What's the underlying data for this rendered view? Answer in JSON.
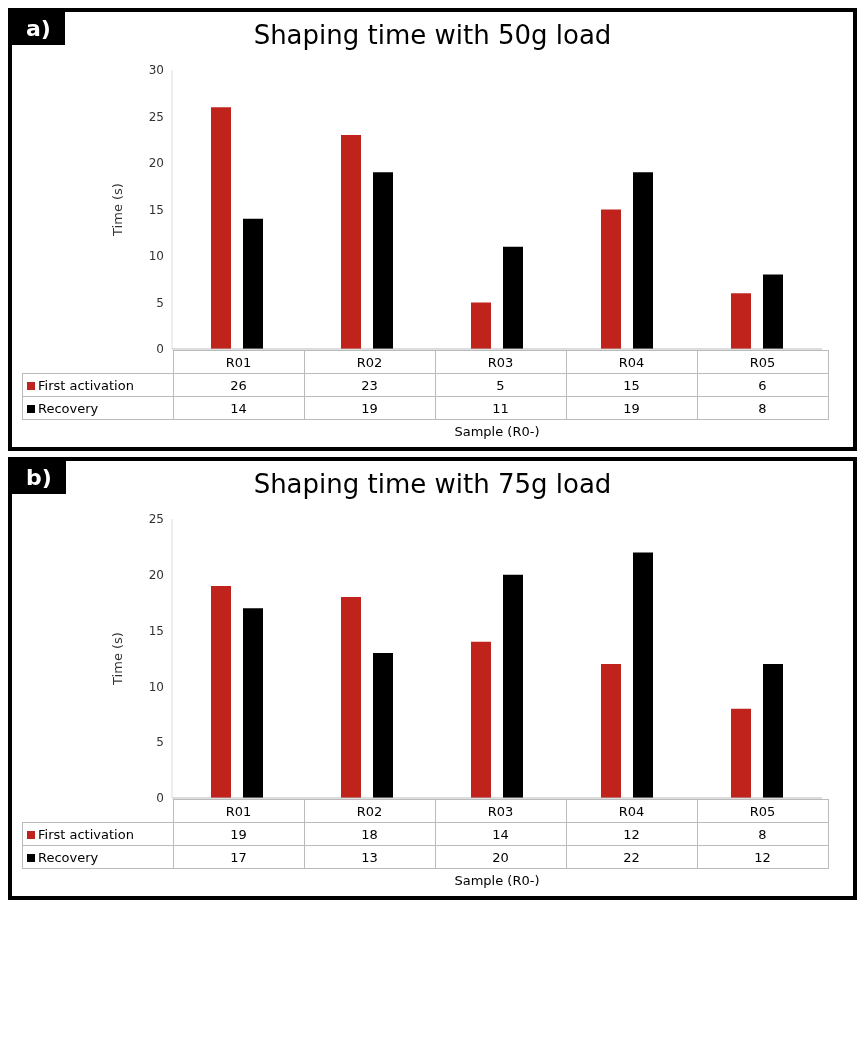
{
  "chart_data": [
    {
      "type": "bar",
      "title": "Shaping time with 50g load",
      "xlabel": "Sample (R0-)",
      "ylabel": "Time (s)",
      "annotations": [
        "a)"
      ],
      "categories": [
        "R01",
        "R02",
        "R03",
        "R04",
        "R05"
      ],
      "series": [
        {
          "name": "First activation",
          "color": "#c0231b",
          "values": [
            26,
            23,
            5,
            15,
            6
          ]
        },
        {
          "name": "Recovery",
          "color": "#000000",
          "values": [
            14,
            19,
            11,
            19,
            8
          ]
        }
      ],
      "ylim": [
        0,
        30
      ],
      "yticks": [
        0,
        5,
        10,
        15,
        20,
        25,
        30
      ],
      "data_labels": true,
      "legend": "bottom"
    },
    {
      "type": "bar",
      "title": "Shaping time with 75g load",
      "xlabel": "Sample (R0-)",
      "ylabel": "Time (s)",
      "annotations": [
        "b)"
      ],
      "categories": [
        "R01",
        "R02",
        "R03",
        "R04",
        "R05"
      ],
      "series": [
        {
          "name": "First activation",
          "color": "#c0231b",
          "values": [
            19,
            18,
            14,
            12,
            8
          ]
        },
        {
          "name": "Recovery",
          "color": "#000000",
          "values": [
            17,
            13,
            20,
            22,
            12
          ]
        }
      ],
      "ylim": [
        0,
        25
      ],
      "yticks": [
        0,
        5,
        10,
        15,
        20,
        25
      ],
      "data_labels": true,
      "legend": "bottom"
    }
  ]
}
